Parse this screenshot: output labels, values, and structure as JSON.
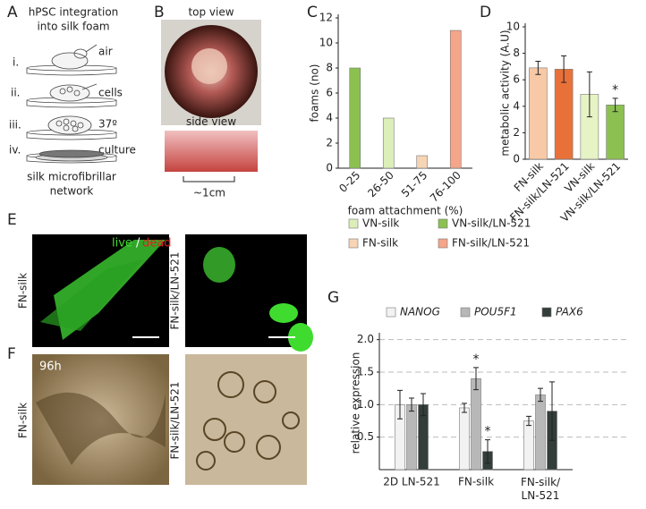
{
  "panel_letters": [
    "A",
    "B",
    "C",
    "D",
    "E",
    "F",
    "G"
  ],
  "panel_a": {
    "title_lines": [
      "hPSC integration",
      "into silk foam"
    ],
    "steps": [
      {
        "label": "i.",
        "note": "air"
      },
      {
        "label": "ii.",
        "note": "cells"
      },
      {
        "label": "iii.",
        "note": "37º"
      },
      {
        "label": "iv.",
        "note": "culture"
      }
    ],
    "caption_lines": [
      "silk microfibrillar",
      "network"
    ]
  },
  "panel_b": {
    "top": "top view",
    "side": "side view",
    "scale": "~1cm"
  },
  "panel_e": {
    "live": "live",
    "sep": "/",
    "dead": "dead",
    "left_label": "FN-silk",
    "right_label": "FN-silk/LN-521"
  },
  "panel_f": {
    "time": "96h",
    "left_label": "FN-silk",
    "right_label": "FN-silk/LN-521"
  },
  "chart_data": [
    {
      "type": "bar",
      "x_label": "foam attachment  (%)",
      "y_label": "foams (no)",
      "categories": [
        "0-25",
        "26-50",
        "51-75",
        "76-100"
      ],
      "series": [
        {
          "name": "VN-silk",
          "color": "#dcefb8",
          "values": [
            null,
            4,
            null,
            null
          ]
        },
        {
          "name": "VN-silk/LN-521",
          "color": "#8cc152",
          "values": [
            8,
            null,
            null,
            null
          ]
        },
        {
          "name": "FN-silk",
          "color": "#f7d4b4",
          "values": [
            null,
            null,
            1,
            null
          ]
        },
        {
          "name": "FN-silk/LN-521",
          "color": "#f4a58a",
          "values": [
            null,
            null,
            null,
            11
          ]
        }
      ],
      "ylim": [
        0,
        12
      ],
      "yticks": [
        0,
        2,
        4,
        6,
        8,
        10,
        12
      ]
    },
    {
      "type": "bar",
      "y_label": "metabolic activity (A.U)",
      "categories": [
        "FN-silk",
        "FN-silk/LN-521",
        "VN-silk",
        "VN-silk/LN-521"
      ],
      "values": [
        6.9,
        6.8,
        4.9,
        4.1
      ],
      "errors": [
        0.5,
        1.0,
        1.7,
        0.5
      ],
      "colors": [
        "#f7c9a6",
        "#e8713a",
        "#e6f3c4",
        "#8cc152"
      ],
      "annotations": [
        {
          "text": "*",
          "category": 3
        }
      ],
      "ylim": [
        0,
        10
      ],
      "yticks": [
        0,
        2,
        4,
        6,
        8,
        10
      ]
    },
    {
      "type": "bar",
      "y_label": "relative expression",
      "categories": [
        "2D LN-521",
        "FN-silk",
        "FN-silk/ LN-521"
      ],
      "series": [
        {
          "name": "NANOG",
          "color": "#f2f2f2",
          "values": [
            1.0,
            0.95,
            0.75
          ],
          "errors": [
            0.22,
            0.07,
            0.07
          ]
        },
        {
          "name": "POU5F1",
          "color": "#b8b8b8",
          "values": [
            1.0,
            1.4,
            1.15
          ],
          "errors": [
            0.1,
            0.17,
            0.1
          ]
        },
        {
          "name": "PAX6",
          "color": "#333d3a",
          "values": [
            1.0,
            0.28,
            0.9
          ],
          "errors": [
            0.17,
            0.18,
            0.45
          ]
        }
      ],
      "annotations": [
        {
          "text": "*",
          "category": 1,
          "series": 1
        },
        {
          "text": "*",
          "category": 1,
          "series": 2
        }
      ],
      "ylim": [
        0,
        2.05
      ],
      "yticks": [
        {
          "value": 0.5,
          "label": "0.5"
        },
        {
          "value": 1.0,
          "label": "1.0"
        },
        {
          "value": 1.5,
          "label": "1.5"
        },
        {
          "value": 2.0,
          "label": "2.0"
        }
      ],
      "grid": true
    }
  ]
}
